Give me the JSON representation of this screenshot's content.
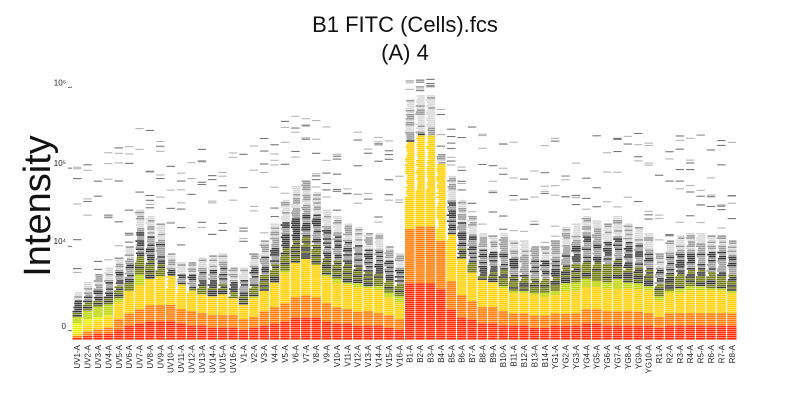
{
  "chart_data": {
    "type": "heatmap",
    "title": "B1 FITC (Cells).fcs",
    "subtitle": "(A) 4",
    "xlabel": "",
    "ylabel": "Intensity",
    "y_scale": "logicle",
    "ylim": [
      -300,
      1500000
    ],
    "y_ticks": [
      {
        "value": 0,
        "label": "0"
      },
      {
        "value": 10000,
        "label": "10⁴"
      },
      {
        "value": 100000,
        "label": "10⁵"
      },
      {
        "value": 1000000,
        "label": "10⁶"
      }
    ],
    "colormap": [
      "#ff2a00",
      "#ff7a00",
      "#ffd000",
      "#e8f000",
      "#bcd400",
      "#6f7a10",
      "#3a3a3a",
      "#000000",
      "#9a9a9a",
      "#d8d8d8"
    ],
    "categories": [
      "UV1-A",
      "UV2-A",
      "UV3-A",
      "UV4-A",
      "UV5-A",
      "UV6-A",
      "UV7-A",
      "UV8-A",
      "UV9-A",
      "UV10-A",
      "UV11-A",
      "UV12-A",
      "UV13-A",
      "UV14-A",
      "UV15-A",
      "UV16-A",
      "V1-A",
      "V2-A",
      "V3-A",
      "V4-A",
      "V5-A",
      "V6-A",
      "V7-A",
      "V8-A",
      "V9-A",
      "V10-A",
      "V11-A",
      "V12-A",
      "V13-A",
      "V14-A",
      "V15-A",
      "V16-A",
      "B1-A",
      "B2-A",
      "B3-A",
      "B4-A",
      "B5-A",
      "B6-A",
      "B7-A",
      "B8-A",
      "B9-A",
      "B10-A",
      "B11-A",
      "B12-A",
      "B13-A",
      "B14-A",
      "YG1-A",
      "YG2-A",
      "YG3-A",
      "YG4-A",
      "YG5-A",
      "YG6-A",
      "YG7-A",
      "YG8-A",
      "YG9-A",
      "YG10-A",
      "R1-A",
      "R2-A",
      "R3-A",
      "R4-A",
      "R5-A",
      "R6-A",
      "R7-A",
      "R8-A"
    ],
    "series": [
      {
        "distribution": [
          [
            -100,
            200,
            400,
            600,
            1500,
            2500,
            3300,
            4400,
            4600,
            4600,
            3400,
            2700,
            2300,
            2100,
            2200,
            1900,
            1300,
            1800,
            2600,
            3800,
            5200,
            7700,
            8800,
            7300,
            4700,
            3700,
            3400,
            2900,
            2800,
            2600,
            2000,
            1500,
            400000,
            480000,
            480000,
            200000,
            20000,
            8800,
            5400,
            4100,
            3600,
            2900,
            2300,
            2300,
            2100,
            2000,
            2200,
            2500,
            2500,
            3000,
            3000,
            2800,
            2800,
            2800,
            2700,
            2600,
            1700,
            2400,
            2500,
            2600,
            2600,
            2600,
            2600,
            2400
          ],
          [
            2000,
            3000,
            4000,
            5000,
            7000,
            10000,
            30000,
            25000,
            20000,
            8000,
            6000,
            6000,
            7000,
            7500,
            8000,
            5000,
            5000,
            8000,
            12000,
            20000,
            40000,
            60000,
            70000,
            50000,
            30000,
            25000,
            20000,
            18000,
            15000,
            15000,
            10000,
            8000,
            700000,
            800000,
            800000,
            150000,
            80000,
            40000,
            25000,
            15000,
            14000,
            15000,
            12000,
            12000,
            10000,
            10000,
            12000,
            18000,
            20000,
            25000,
            22000,
            20000,
            25000,
            20000,
            18000,
            15000,
            8000,
            12000,
            14000,
            15000,
            15000,
            14000,
            14000,
            12000
          ]
        ]
      }
    ]
  }
}
